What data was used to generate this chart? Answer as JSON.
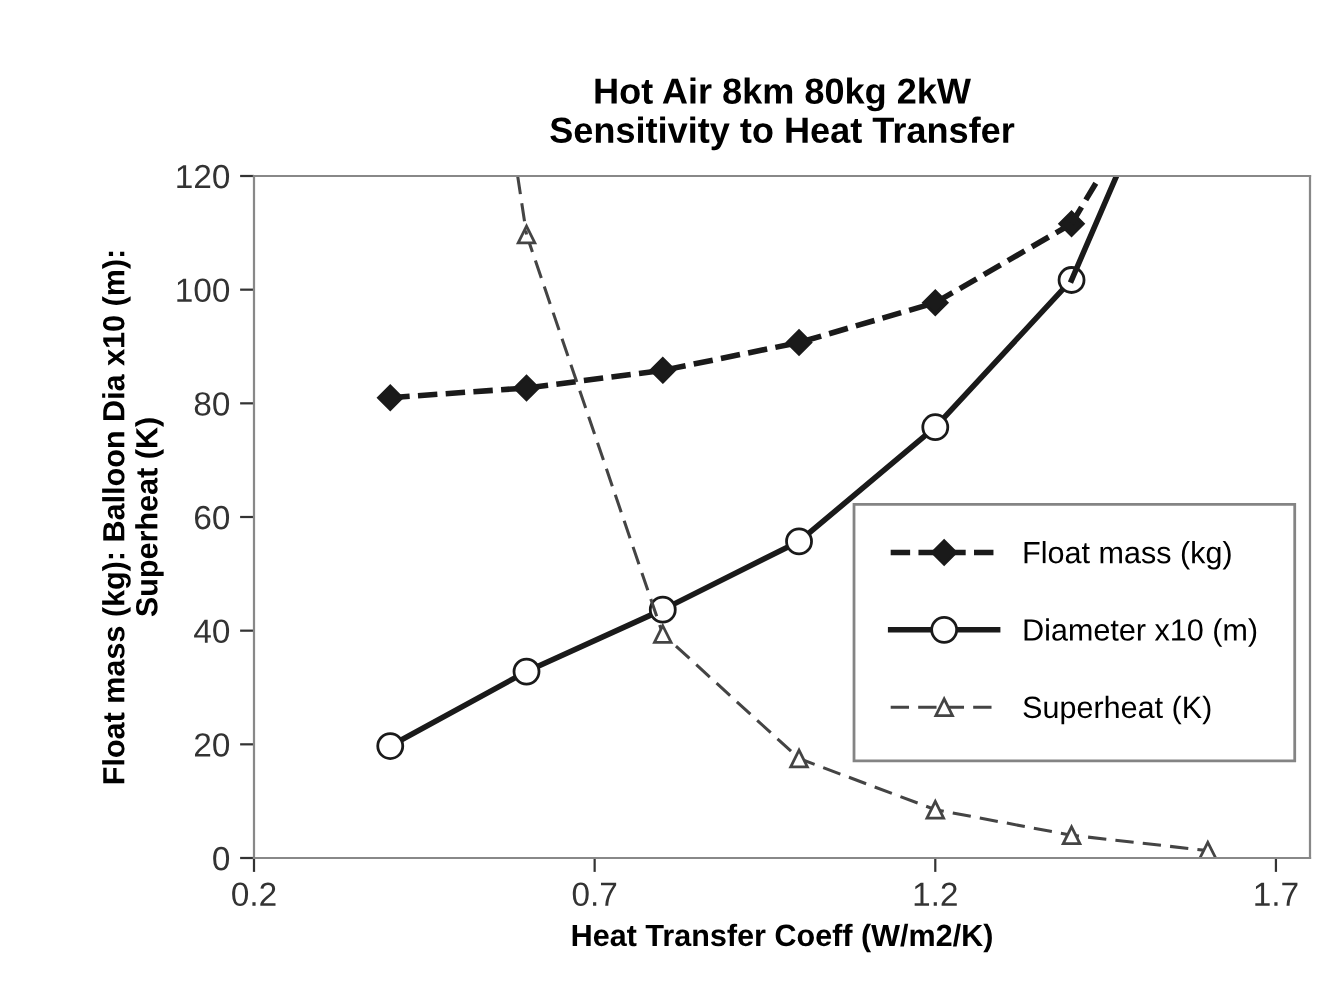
{
  "chart_data": {
    "type": "line",
    "title": "Hot Air 8km 80kg 2kW\nSensitivity to Heat Transfer",
    "xlabel": "Heat Transfer Coeff (W/m2/K)",
    "ylabel": "Float mass (kg): Balloon Dia x10 (m):\nSuperheat (K)",
    "xlim": [
      0.2,
      1.75
    ],
    "xticks": [
      0.2,
      0.7,
      1.2,
      1.7
    ],
    "ylim": [
      0,
      120
    ],
    "yticks": [
      0,
      20,
      40,
      60,
      80,
      100,
      120
    ],
    "grid": false,
    "legend": "bottom right",
    "series": [
      {
        "name": "Float mass (kg)",
        "color": "#1a1a1a",
        "marker": "diamond",
        "line_style": "dashed",
        "x": [
          0.4,
          0.6,
          0.8,
          1.0,
          1.2,
          1.4
        ],
        "values": [
          81,
          82.7,
          85.8,
          90.7,
          97.7,
          111.6
        ]
      },
      {
        "name": "Diameter x10 (m)",
        "color": "#1a1a1a",
        "marker": "circle",
        "line_style": "solid",
        "x": [
          0.4,
          0.6,
          0.8,
          1.0,
          1.2,
          1.4
        ],
        "values": [
          19.7,
          32.8,
          43.7,
          55.7,
          75.8,
          101.7
        ]
      },
      {
        "name": "Superheat (K)",
        "color": "#444444",
        "marker": "triangle",
        "line_style": "dashed",
        "x": [
          0.6,
          0.8,
          1.0,
          1.2,
          1.4,
          1.6
        ],
        "values": [
          109.7,
          39.4,
          17.5,
          8.5,
          4.0,
          1.3
        ]
      },
      {
        "color": "#1a1a1a",
        "marker": "none",
        "line_style": "dashed",
        "x": [
          1.4,
          1.442
        ],
        "values": [
          111.6,
          120
        ]
      },
      {
        "color": "#1a1a1a",
        "marker": "none",
        "line_style": "solid",
        "x": [
          1.4,
          1.466
        ],
        "values": [
          101.7,
          120
        ]
      },
      {
        "color": "#444444",
        "marker": "none",
        "line_style": "dashed",
        "x": [
          0.587,
          0.6
        ],
        "values": [
          120,
          109.7
        ]
      }
    ]
  }
}
